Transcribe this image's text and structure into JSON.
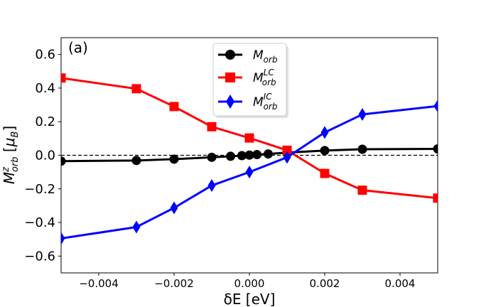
{
  "chart_data": {
    "type": "line",
    "panel_label": "(a)",
    "xlabel": "δE [eV]",
    "ylabel": {
      "main": "M",
      "sup": "z",
      "sub": "orb",
      "unit_open": " [",
      "unit": "μ",
      "unit_sub": "B",
      "unit_close": "]"
    },
    "xlim": [
      -0.005,
      0.005
    ],
    "ylim": [
      -0.7,
      0.7
    ],
    "xticks": [
      -0.004,
      -0.002,
      0.0,
      0.002,
      0.004
    ],
    "xtick_labels": [
      "−0.004",
      "−0.002",
      "0.000",
      "0.002",
      "0.004"
    ],
    "yticks": [
      -0.6,
      -0.4,
      -0.2,
      0.0,
      0.2,
      0.4,
      0.6
    ],
    "ytick_labels": [
      "−0.6",
      "−0.4",
      "−0.2",
      "0.0",
      "0.2",
      "0.4",
      "0.6"
    ],
    "reference_line": {
      "y": 0.0,
      "style": "dashed"
    },
    "legend_position": "top-center",
    "series": [
      {
        "name": "M_orb",
        "label_main": "M",
        "label_sub": "orb",
        "label_sup": "",
        "color": "#000000",
        "marker": "circle",
        "x": [
          -0.005,
          -0.003,
          -0.002,
          -0.001,
          -0.0005,
          -0.0002,
          0.0,
          0.0002,
          0.0005,
          0.001,
          0.002,
          0.003,
          0.005
        ],
        "y": [
          -0.035,
          -0.031,
          -0.023,
          -0.012,
          -0.006,
          -0.002,
          0.001,
          0.004,
          0.008,
          0.016,
          0.028,
          0.036,
          0.038
        ]
      },
      {
        "name": "M_orb^LC",
        "label_main": "M",
        "label_sub": "orb",
        "label_sup": "LC",
        "color": "#ff0000",
        "marker": "square",
        "x": [
          -0.005,
          -0.003,
          -0.002,
          -0.001,
          0.0,
          0.001,
          0.002,
          0.003,
          0.005
        ],
        "y": [
          0.46,
          0.396,
          0.29,
          0.17,
          0.103,
          0.03,
          -0.108,
          -0.208,
          -0.255
        ]
      },
      {
        "name": "M_orb^IC",
        "label_main": "M",
        "label_sub": "orb",
        "label_sup": "IC",
        "color": "#0000ff",
        "marker": "diamond",
        "x": [
          -0.005,
          -0.003,
          -0.002,
          -0.001,
          0.0,
          0.001,
          0.002,
          0.003,
          0.005
        ],
        "y": [
          -0.495,
          -0.427,
          -0.313,
          -0.18,
          -0.1,
          -0.012,
          0.136,
          0.243,
          0.293
        ]
      }
    ]
  }
}
